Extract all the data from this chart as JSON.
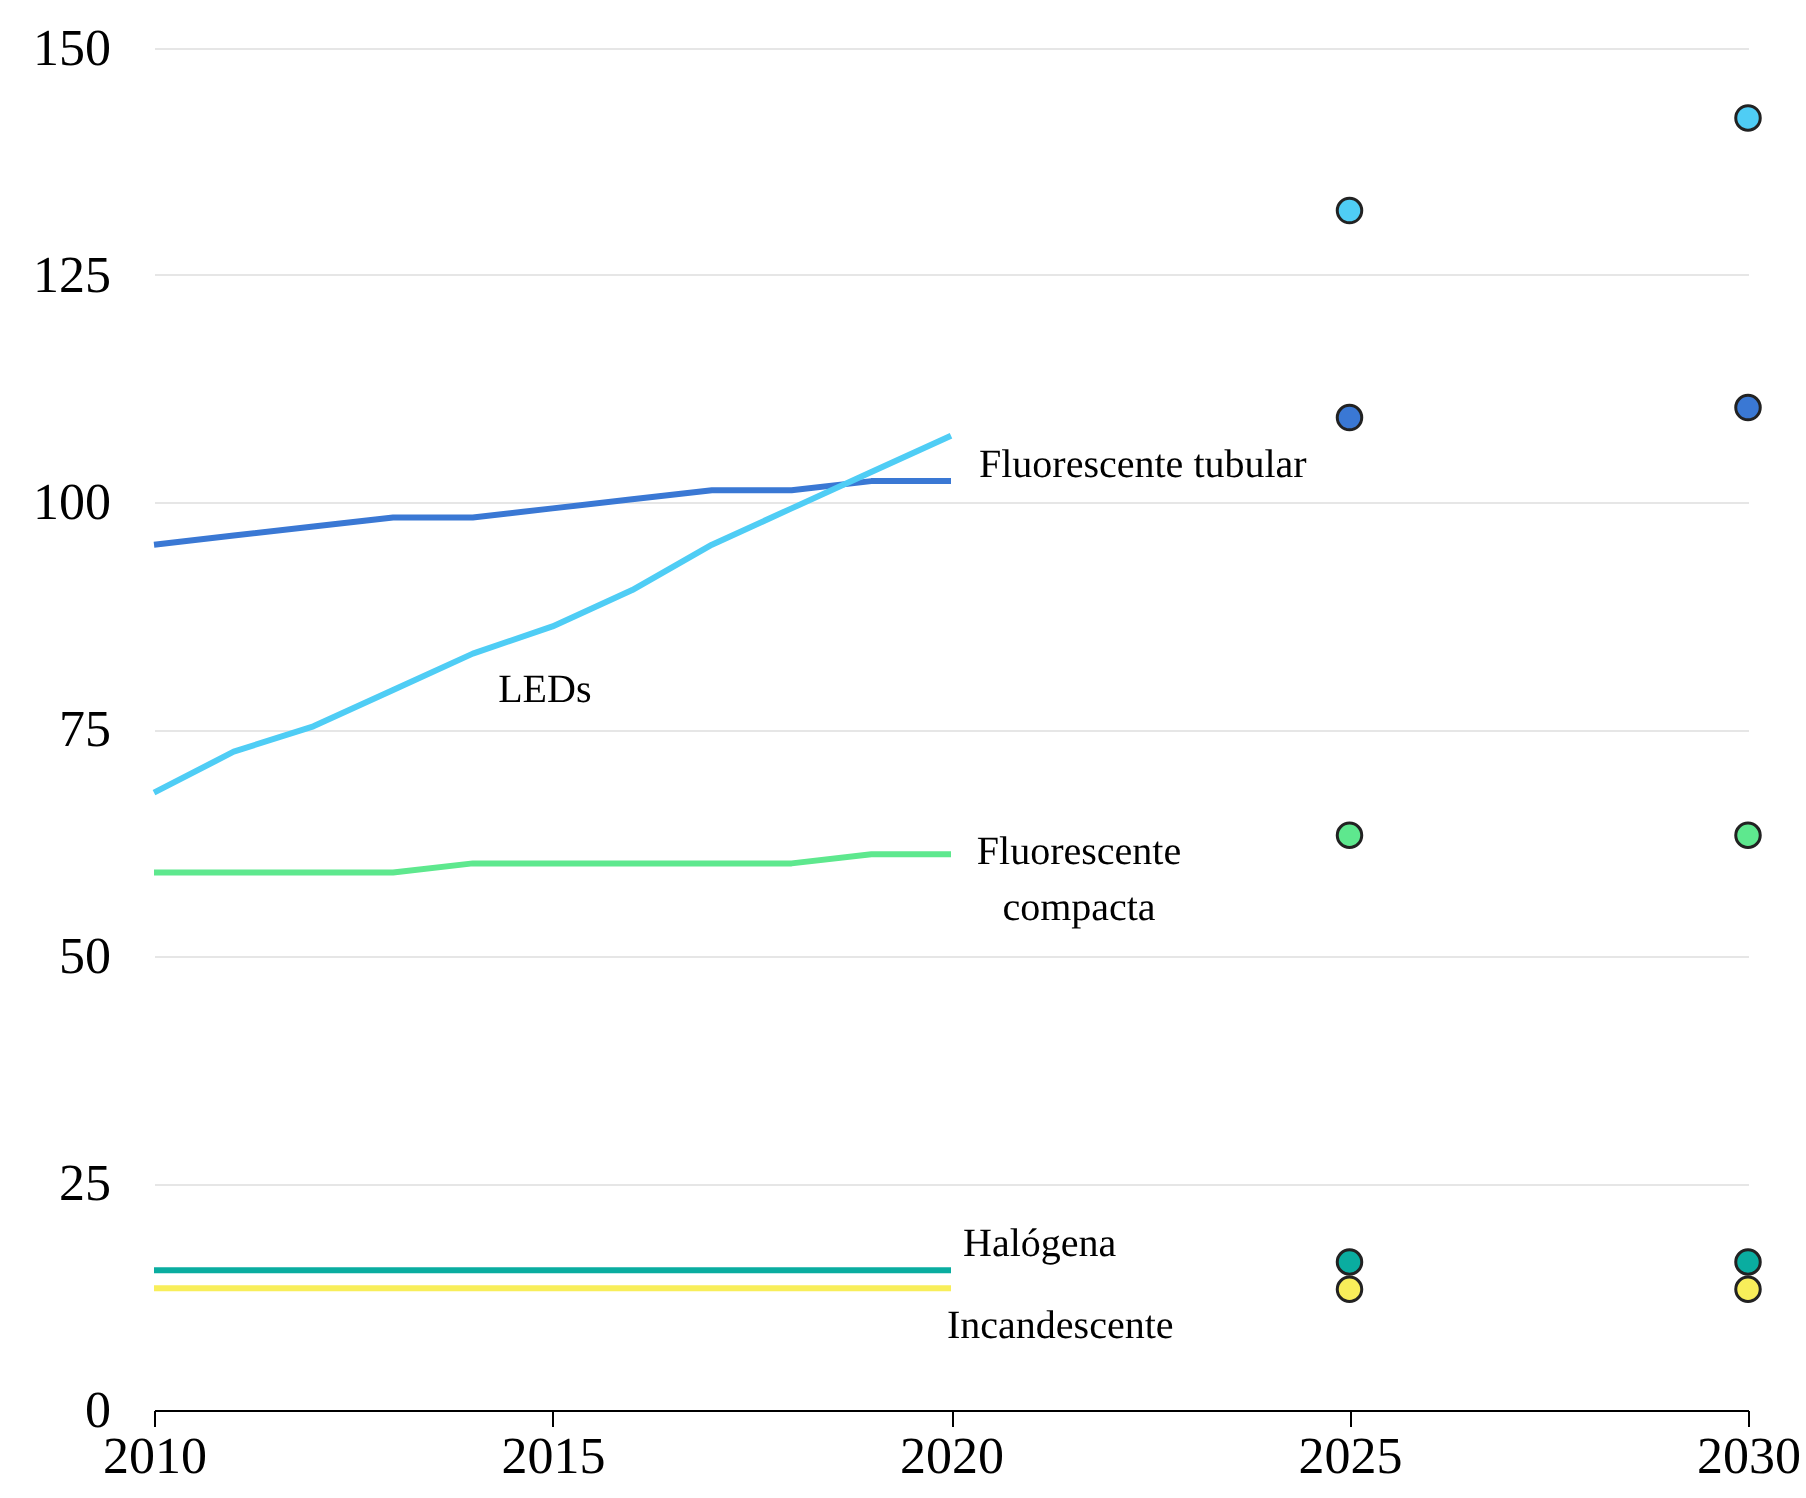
{
  "chart_data": {
    "type": "line",
    "xlim": [
      2010,
      2030
    ],
    "xticks": [
      2010,
      2015,
      2020,
      2025,
      2030
    ],
    "ylim": [
      0,
      150
    ],
    "yticks": [
      0,
      25,
      50,
      75,
      100,
      125,
      150
    ],
    "grid": "y",
    "series": [
      {
        "name": "Fluorescente tubular",
        "color": "#3a78d4",
        "x": [
          2010,
          2011,
          2012,
          2013,
          2014,
          2015,
          2016,
          2017,
          2018,
          2019,
          2020
        ],
        "values": [
          95.3,
          96.3,
          97.3,
          98.3,
          98.3,
          99.3,
          100.3,
          101.3,
          101.3,
          102.3,
          102.3
        ]
      },
      {
        "name": "LEDs",
        "color": "#4fcdf5",
        "x": [
          2010,
          2011,
          2012,
          2013,
          2014,
          2015,
          2016,
          2017,
          2018,
          2019,
          2020
        ],
        "values": [
          68,
          72.5,
          75.3,
          79.3,
          83.3,
          86.3,
          90.3,
          95.3,
          99.3,
          103.3,
          107.3
        ]
      },
      {
        "name": "Fluorescente compacta",
        "color": "#5ee88e",
        "x": [
          2010,
          2011,
          2012,
          2013,
          2014,
          2015,
          2016,
          2017,
          2018,
          2019,
          2020
        ],
        "values": [
          59.2,
          59.2,
          59.2,
          59.2,
          60.2,
          60.2,
          60.2,
          60.2,
          60.2,
          61.2,
          61.2
        ]
      },
      {
        "name": "Halógena",
        "color": "#0aada0",
        "x": [
          2010,
          2020
        ],
        "values": [
          15.4,
          15.4
        ]
      },
      {
        "name": "Incandescente",
        "color": "#f8ee5a",
        "x": [
          2010,
          2020
        ],
        "values": [
          13.4,
          13.4
        ]
      },
      {
        "type": "scatter",
        "marker": "circle",
        "color": "#3a78d4",
        "x": [
          2025,
          2030
        ],
        "values": [
          109.3,
          110.4
        ]
      },
      {
        "type": "scatter",
        "marker": "circle",
        "color": "#4fcdf5",
        "x": [
          2025,
          2030
        ],
        "values": [
          132.1,
          142.3
        ]
      },
      {
        "type": "scatter",
        "marker": "circle",
        "color": "#5ee88e",
        "x": [
          2025,
          2030
        ],
        "values": [
          63.3,
          63.3
        ]
      },
      {
        "type": "scatter",
        "marker": "circle",
        "color": "#0aada0",
        "x": [
          2025,
          2030
        ],
        "values": [
          16.3,
          16.3
        ]
      },
      {
        "type": "scatter",
        "marker": "circle",
        "color": "#f8ee5a",
        "x": [
          2025,
          2030
        ],
        "values": [
          13.3,
          13.3
        ]
      }
    ]
  }
}
